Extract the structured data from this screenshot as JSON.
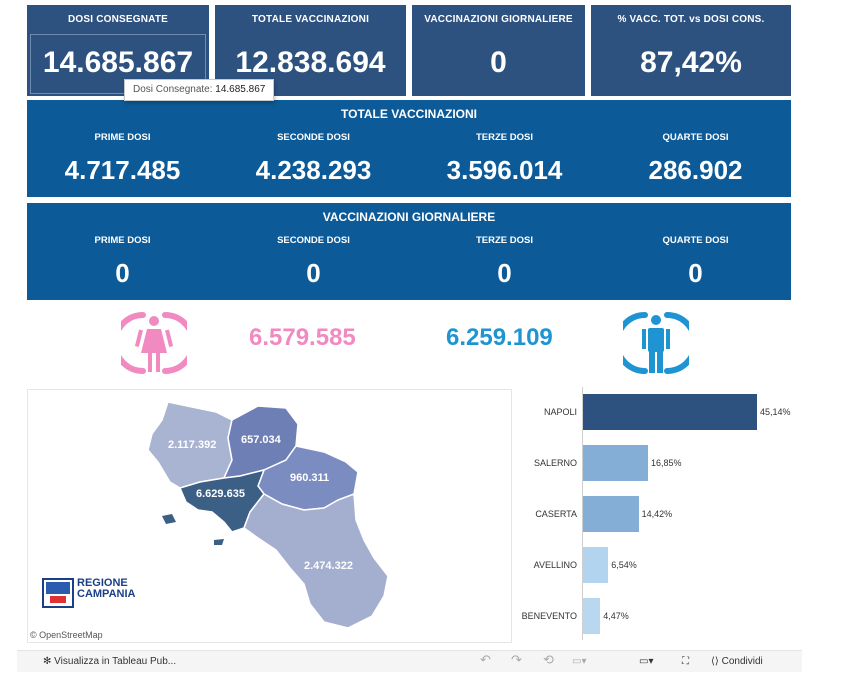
{
  "kpis": [
    {
      "label": "DOSI  CONSEGNATE",
      "value": "14.685.867"
    },
    {
      "label": "TOTALE VACCINAZIONI",
      "value": "12.838.694"
    },
    {
      "label": "VACCINAZIONI GIORNALIERE",
      "value": "0"
    },
    {
      "label": "% VACC. TOT. vs DOSI CONS.",
      "value": "87,42%"
    }
  ],
  "tooltip": {
    "label": "Dosi Consegnate:",
    "value": "14.685.867"
  },
  "totale_vaccinazioni": {
    "title": "TOTALE VACCINAZIONI",
    "items": [
      {
        "label": "PRIME DOSI",
        "value": "4.717.485"
      },
      {
        "label": "SECONDE DOSI",
        "value": "4.238.293"
      },
      {
        "label": "TERZE DOSI",
        "value": "3.596.014"
      },
      {
        "label": "QUARTE DOSI",
        "value": "286.902"
      }
    ]
  },
  "vaccinazioni_giornaliere": {
    "title": "VACCINAZIONI GIORNALIERE",
    "items": [
      {
        "label": "PRIME DOSI",
        "value": "0"
      },
      {
        "label": "SECONDE DOSI",
        "value": "0"
      },
      {
        "label": "TERZE DOSI",
        "value": "0"
      },
      {
        "label": "QUARTE DOSI",
        "value": "0"
      }
    ]
  },
  "gender": {
    "female_value": "6.579.585",
    "male_value": "6.259.109",
    "female_color": "#f08ac0",
    "male_color": "#1e94d2",
    "female_icon": "female-person-icon",
    "male_icon": "male-person-icon"
  },
  "map": {
    "provinces": [
      {
        "name": "caserta",
        "value": "2.117.392",
        "color": "#a9b3d2"
      },
      {
        "name": "benevento",
        "value": "657.034",
        "color": "#6e7fb6"
      },
      {
        "name": "avellino",
        "value": "960.311",
        "color": "#7b8cc0"
      },
      {
        "name": "napoli",
        "value": "6.629.635",
        "color": "#3c5f86"
      },
      {
        "name": "salerno",
        "value": "2.474.322",
        "color": "#a4aecf"
      }
    ],
    "logo_line1": "REGIONE",
    "logo_line2": "CAMPANIA",
    "attribution": "© OpenStreetMap"
  },
  "chart_data": {
    "type": "bar",
    "orientation": "horizontal",
    "categories": [
      "NAPOLI",
      "SALERNO",
      "CASERTA",
      "AVELLINO",
      "BENEVENTO"
    ],
    "values": [
      45.14,
      16.85,
      14.42,
      6.54,
      4.47
    ],
    "value_labels": [
      "45,14%",
      "16,85%",
      "14,42%",
      "6,54%",
      "4,47%"
    ],
    "colors": [
      "#2e5280",
      "#85aed6",
      "#85aed6",
      "#b3d4ee",
      "#b8d8f0"
    ],
    "xlim": [
      0,
      50
    ]
  },
  "toolbar": {
    "view_label": "Visualizza in Tableau Pub...",
    "share_label": "Condividi",
    "view_icon": "tableau-icon",
    "undo_icon": "undo-icon",
    "redo_icon": "redo-icon",
    "revert_icon": "revert-icon",
    "pause_icon": "pause-icon",
    "device_icon": "device-layout-icon",
    "fullscreen_icon": "fullscreen-icon",
    "share_icon": "share-icon"
  }
}
